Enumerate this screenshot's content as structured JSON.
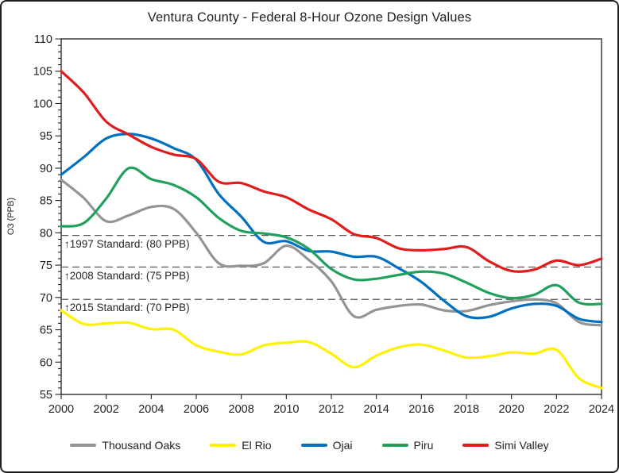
{
  "chart_data": {
    "type": "line",
    "title": "Ventura County - Federal 8-Hour Ozone Design Values",
    "ylabel": "O3 (PPB)",
    "ylim": [
      55,
      110
    ],
    "y_tick_step": 5,
    "y_minor_step": 1,
    "xlim": [
      2000,
      2024
    ],
    "x_tick_step": 2,
    "grid": "off",
    "legend_position": "bottom",
    "line_smoothing": "smooth",
    "x": [
      2000,
      2001,
      2002,
      2003,
      2004,
      2005,
      2006,
      2007,
      2008,
      2009,
      2010,
      2011,
      2012,
      2013,
      2014,
      2015,
      2016,
      2017,
      2018,
      2019,
      2020,
      2021,
      2022,
      2023,
      2024
    ],
    "series": [
      {
        "name": "Thousand Oaks",
        "color": "#949494",
        "values": [
          88.2,
          85.4,
          81.8,
          82.7,
          84.0,
          83.7,
          80.0,
          75.3,
          74.9,
          75.3,
          78.0,
          75.8,
          72.5,
          67.1,
          68.1,
          68.7,
          68.9,
          68.0,
          67.9,
          68.8,
          69.4,
          69.7,
          69.1,
          66.2,
          65.7
        ]
      },
      {
        "name": "El Rio",
        "color": "#FFF100",
        "values": [
          68.0,
          65.9,
          66.0,
          66.1,
          65.1,
          65.0,
          62.6,
          61.6,
          61.2,
          62.6,
          63.0,
          63.1,
          61.3,
          59.2,
          61.0,
          62.3,
          62.7,
          61.8,
          60.7,
          60.9,
          61.5,
          61.3,
          61.9,
          57.5,
          56.0
        ]
      },
      {
        "name": "Ojai",
        "color": "#0070C0",
        "values": [
          89.0,
          91.7,
          94.6,
          95.3,
          94.6,
          93.1,
          91.3,
          86.0,
          82.5,
          78.6,
          78.7,
          77.2,
          77.1,
          76.3,
          76.3,
          74.5,
          72.4,
          69.5,
          67.1,
          67.0,
          68.3,
          69.0,
          68.7,
          66.7,
          66.2
        ]
      },
      {
        "name": "Piru",
        "color": "#1FA05C",
        "values": [
          81.0,
          81.5,
          85.3,
          90.0,
          88.3,
          87.4,
          85.5,
          82.3,
          80.3,
          79.9,
          79.3,
          77.5,
          74.4,
          72.8,
          72.9,
          73.5,
          74.0,
          73.7,
          72.3,
          70.7,
          69.9,
          70.4,
          71.9,
          69.2,
          69.0
        ]
      },
      {
        "name": "Simi Valley",
        "color": "#E01C1C",
        "values": [
          105.0,
          101.7,
          97.2,
          95.2,
          93.3,
          92.1,
          91.4,
          87.9,
          87.7,
          86.4,
          85.5,
          83.6,
          82.1,
          79.8,
          79.2,
          77.6,
          77.3,
          77.5,
          77.8,
          75.6,
          74.1,
          74.3,
          75.7,
          75.0,
          76.0
        ]
      }
    ],
    "standards": [
      {
        "text": "↑1997 Standard: (80 PPB)",
        "ppb": 80,
        "line_y": 79.6
      },
      {
        "text": "↑2008 Standard: (75 PPB)",
        "ppb": 75,
        "line_y": 74.7
      },
      {
        "text": "↑2015 Standard: (70 PPB)",
        "ppb": 70,
        "line_y": 69.7
      }
    ],
    "standard_line_color": "#555555",
    "axis_color": "#1f1f1f"
  }
}
